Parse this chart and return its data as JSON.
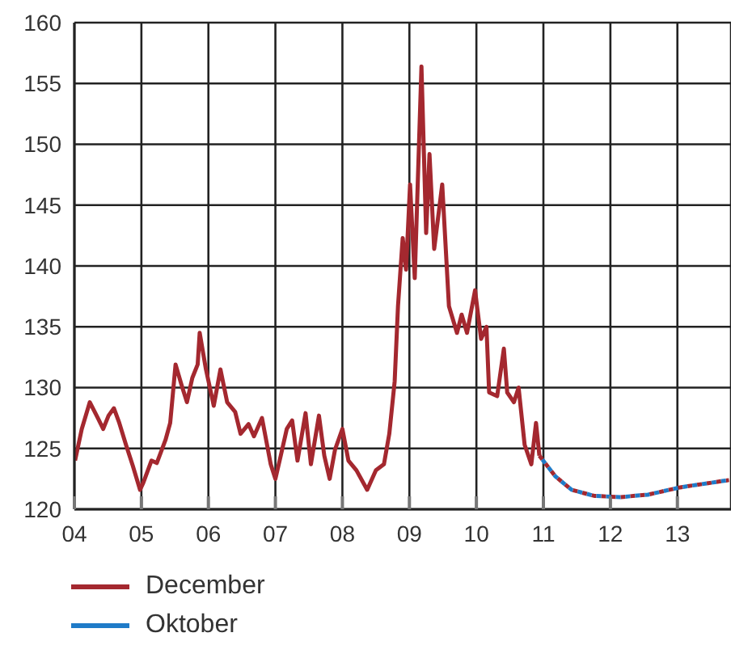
{
  "chart_data": {
    "type": "line",
    "xlim": [
      2004,
      2013.8
    ],
    "xticks": [
      {
        "value": 2004,
        "label": "04"
      },
      {
        "value": 2005,
        "label": "05"
      },
      {
        "value": 2006,
        "label": "06"
      },
      {
        "value": 2007,
        "label": "07"
      },
      {
        "value": 2008,
        "label": "08"
      },
      {
        "value": 2009,
        "label": "09"
      },
      {
        "value": 2010,
        "label": "10"
      },
      {
        "value": 2011,
        "label": "11"
      },
      {
        "value": 2012,
        "label": "12"
      },
      {
        "value": 2013,
        "label": "13"
      }
    ],
    "ylim": [
      120,
      160
    ],
    "yticks": [
      120,
      125,
      130,
      135,
      140,
      145,
      150,
      155,
      160
    ],
    "grid": true,
    "legend": "bottom left",
    "marker": "none",
    "series": [
      {
        "name": "December",
        "color": "#a4282f",
        "line_style": "solid",
        "x": [
          2004.01,
          2004.11,
          2004.23,
          2004.35,
          2004.43,
          2004.51,
          2004.59,
          2004.67,
          2004.77,
          2004.87,
          2004.98,
          2005.03,
          2005.15,
          2005.23,
          2005.36,
          2005.43,
          2005.51,
          2005.6,
          2005.68,
          2005.76,
          2005.84,
          2005.87,
          2005.96,
          2006.08,
          2006.18,
          2006.28,
          2006.4,
          2006.48,
          2006.6,
          2006.68,
          2006.8,
          2006.93,
          2007.0,
          2007.08,
          2007.17,
          2007.25,
          2007.33,
          2007.45,
          2007.53,
          2007.65,
          2007.73,
          2007.81,
          2007.89,
          2008.0,
          2008.09,
          2008.21,
          2008.37,
          2008.5,
          2008.62,
          2008.7,
          2008.78,
          2008.83,
          2008.9,
          2008.95,
          2009.01,
          2009.08,
          2009.18,
          2009.25,
          2009.3,
          2009.37,
          2009.49,
          2009.59,
          2009.71,
          2009.78,
          2009.86,
          2009.98,
          2010.07,
          2010.15,
          2010.19,
          2010.31,
          2010.41,
          2010.46,
          2010.56,
          2010.63,
          2010.72,
          2010.82,
          2010.89,
          2010.94
        ],
        "values": [
          124.0,
          126.6,
          128.8,
          127.5,
          126.6,
          127.7,
          128.3,
          127.1,
          125.3,
          123.6,
          121.6,
          122.2,
          124.0,
          123.8,
          125.7,
          127.1,
          131.9,
          130.2,
          128.8,
          130.8,
          131.9,
          134.5,
          131.6,
          128.5,
          131.5,
          128.8,
          128.0,
          126.2,
          127.0,
          126.0,
          127.5,
          123.7,
          122.5,
          124.4,
          126.6,
          127.3,
          124.0,
          127.9,
          123.7,
          127.7,
          124.4,
          122.5,
          124.9,
          126.6,
          124.0,
          123.2,
          121.6,
          123.2,
          123.7,
          126.2,
          130.5,
          136.7,
          142.3,
          139.7,
          146.7,
          139.0,
          156.4,
          142.7,
          149.2,
          141.4,
          146.7,
          136.7,
          134.5,
          136.0,
          134.5,
          138.0,
          134.0,
          135.0,
          129.6,
          129.3,
          133.2,
          129.6,
          128.8,
          130.0,
          125.3,
          123.7,
          127.1,
          124.4
        ]
      },
      {
        "color": "#a4282f",
        "line_style": "dotted",
        "x": [
          2010.94,
          2011.18,
          2011.42,
          2011.76,
          2012.15,
          2012.56,
          2013.04,
          2013.77
        ],
        "values": [
          124.4,
          122.7,
          121.6,
          121.1,
          121.0,
          121.2,
          121.8,
          122.4
        ]
      },
      {
        "name": "Oktober",
        "color": "#1f7bc8",
        "line_style": "dotted",
        "x": [
          2010.94,
          2011.18,
          2011.42,
          2011.76,
          2012.15,
          2012.56,
          2013.04,
          2013.77
        ],
        "values": [
          124.4,
          122.7,
          121.6,
          121.1,
          121.0,
          121.2,
          121.8,
          122.4
        ]
      }
    ]
  }
}
